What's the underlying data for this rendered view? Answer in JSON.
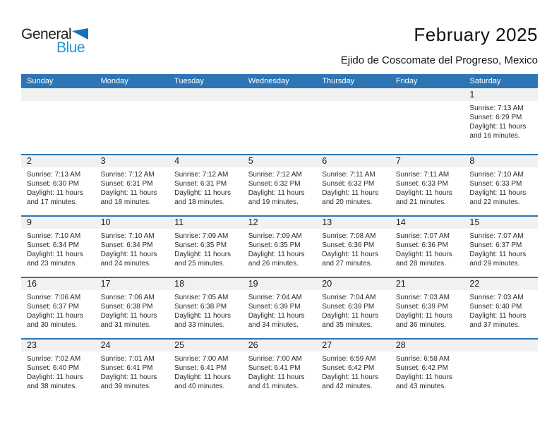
{
  "logo": {
    "part1": "General",
    "part2": "Blue"
  },
  "header": {
    "title": "February 2025",
    "subtitle": "Ejido de Coscomate del Progreso, Mexico"
  },
  "colors": {
    "header_bg": "#2E75B6",
    "row_border": "#2E75B6",
    "date_band_bg": "#F1F1F1",
    "logo_blue_text": "#1E95D4",
    "logo_triangle": "#1572B8"
  },
  "weekdays": [
    "Sunday",
    "Monday",
    "Tuesday",
    "Wednesday",
    "Thursday",
    "Friday",
    "Saturday"
  ],
  "weeks": [
    [
      null,
      null,
      null,
      null,
      null,
      null,
      {
        "day": "1",
        "sunrise": "Sunrise: 7:13 AM",
        "sunset": "Sunset: 6:29 PM",
        "daylight1": "Daylight: 11 hours",
        "daylight2": "and 16 minutes."
      }
    ],
    [
      {
        "day": "2",
        "sunrise": "Sunrise: 7:13 AM",
        "sunset": "Sunset: 6:30 PM",
        "daylight1": "Daylight: 11 hours",
        "daylight2": "and 17 minutes."
      },
      {
        "day": "3",
        "sunrise": "Sunrise: 7:12 AM",
        "sunset": "Sunset: 6:31 PM",
        "daylight1": "Daylight: 11 hours",
        "daylight2": "and 18 minutes."
      },
      {
        "day": "4",
        "sunrise": "Sunrise: 7:12 AM",
        "sunset": "Sunset: 6:31 PM",
        "daylight1": "Daylight: 11 hours",
        "daylight2": "and 18 minutes."
      },
      {
        "day": "5",
        "sunrise": "Sunrise: 7:12 AM",
        "sunset": "Sunset: 6:32 PM",
        "daylight1": "Daylight: 11 hours",
        "daylight2": "and 19 minutes."
      },
      {
        "day": "6",
        "sunrise": "Sunrise: 7:11 AM",
        "sunset": "Sunset: 6:32 PM",
        "daylight1": "Daylight: 11 hours",
        "daylight2": "and 20 minutes."
      },
      {
        "day": "7",
        "sunrise": "Sunrise: 7:11 AM",
        "sunset": "Sunset: 6:33 PM",
        "daylight1": "Daylight: 11 hours",
        "daylight2": "and 21 minutes."
      },
      {
        "day": "8",
        "sunrise": "Sunrise: 7:10 AM",
        "sunset": "Sunset: 6:33 PM",
        "daylight1": "Daylight: 11 hours",
        "daylight2": "and 22 minutes."
      }
    ],
    [
      {
        "day": "9",
        "sunrise": "Sunrise: 7:10 AM",
        "sunset": "Sunset: 6:34 PM",
        "daylight1": "Daylight: 11 hours",
        "daylight2": "and 23 minutes."
      },
      {
        "day": "10",
        "sunrise": "Sunrise: 7:10 AM",
        "sunset": "Sunset: 6:34 PM",
        "daylight1": "Daylight: 11 hours",
        "daylight2": "and 24 minutes."
      },
      {
        "day": "11",
        "sunrise": "Sunrise: 7:09 AM",
        "sunset": "Sunset: 6:35 PM",
        "daylight1": "Daylight: 11 hours",
        "daylight2": "and 25 minutes."
      },
      {
        "day": "12",
        "sunrise": "Sunrise: 7:09 AM",
        "sunset": "Sunset: 6:35 PM",
        "daylight1": "Daylight: 11 hours",
        "daylight2": "and 26 minutes."
      },
      {
        "day": "13",
        "sunrise": "Sunrise: 7:08 AM",
        "sunset": "Sunset: 6:36 PM",
        "daylight1": "Daylight: 11 hours",
        "daylight2": "and 27 minutes."
      },
      {
        "day": "14",
        "sunrise": "Sunrise: 7:07 AM",
        "sunset": "Sunset: 6:36 PM",
        "daylight1": "Daylight: 11 hours",
        "daylight2": "and 28 minutes."
      },
      {
        "day": "15",
        "sunrise": "Sunrise: 7:07 AM",
        "sunset": "Sunset: 6:37 PM",
        "daylight1": "Daylight: 11 hours",
        "daylight2": "and 29 minutes."
      }
    ],
    [
      {
        "day": "16",
        "sunrise": "Sunrise: 7:06 AM",
        "sunset": "Sunset: 6:37 PM",
        "daylight1": "Daylight: 11 hours",
        "daylight2": "and 30 minutes."
      },
      {
        "day": "17",
        "sunrise": "Sunrise: 7:06 AM",
        "sunset": "Sunset: 6:38 PM",
        "daylight1": "Daylight: 11 hours",
        "daylight2": "and 31 minutes."
      },
      {
        "day": "18",
        "sunrise": "Sunrise: 7:05 AM",
        "sunset": "Sunset: 6:38 PM",
        "daylight1": "Daylight: 11 hours",
        "daylight2": "and 33 minutes."
      },
      {
        "day": "19",
        "sunrise": "Sunrise: 7:04 AM",
        "sunset": "Sunset: 6:39 PM",
        "daylight1": "Daylight: 11 hours",
        "daylight2": "and 34 minutes."
      },
      {
        "day": "20",
        "sunrise": "Sunrise: 7:04 AM",
        "sunset": "Sunset: 6:39 PM",
        "daylight1": "Daylight: 11 hours",
        "daylight2": "and 35 minutes."
      },
      {
        "day": "21",
        "sunrise": "Sunrise: 7:03 AM",
        "sunset": "Sunset: 6:39 PM",
        "daylight1": "Daylight: 11 hours",
        "daylight2": "and 36 minutes."
      },
      {
        "day": "22",
        "sunrise": "Sunrise: 7:03 AM",
        "sunset": "Sunset: 6:40 PM",
        "daylight1": "Daylight: 11 hours",
        "daylight2": "and 37 minutes."
      }
    ],
    [
      {
        "day": "23",
        "sunrise": "Sunrise: 7:02 AM",
        "sunset": "Sunset: 6:40 PM",
        "daylight1": "Daylight: 11 hours",
        "daylight2": "and 38 minutes."
      },
      {
        "day": "24",
        "sunrise": "Sunrise: 7:01 AM",
        "sunset": "Sunset: 6:41 PM",
        "daylight1": "Daylight: 11 hours",
        "daylight2": "and 39 minutes."
      },
      {
        "day": "25",
        "sunrise": "Sunrise: 7:00 AM",
        "sunset": "Sunset: 6:41 PM",
        "daylight1": "Daylight: 11 hours",
        "daylight2": "and 40 minutes."
      },
      {
        "day": "26",
        "sunrise": "Sunrise: 7:00 AM",
        "sunset": "Sunset: 6:41 PM",
        "daylight1": "Daylight: 11 hours",
        "daylight2": "and 41 minutes."
      },
      {
        "day": "27",
        "sunrise": "Sunrise: 6:59 AM",
        "sunset": "Sunset: 6:42 PM",
        "daylight1": "Daylight: 11 hours",
        "daylight2": "and 42 minutes."
      },
      {
        "day": "28",
        "sunrise": "Sunrise: 6:58 AM",
        "sunset": "Sunset: 6:42 PM",
        "daylight1": "Daylight: 11 hours",
        "daylight2": "and 43 minutes."
      },
      null
    ]
  ]
}
